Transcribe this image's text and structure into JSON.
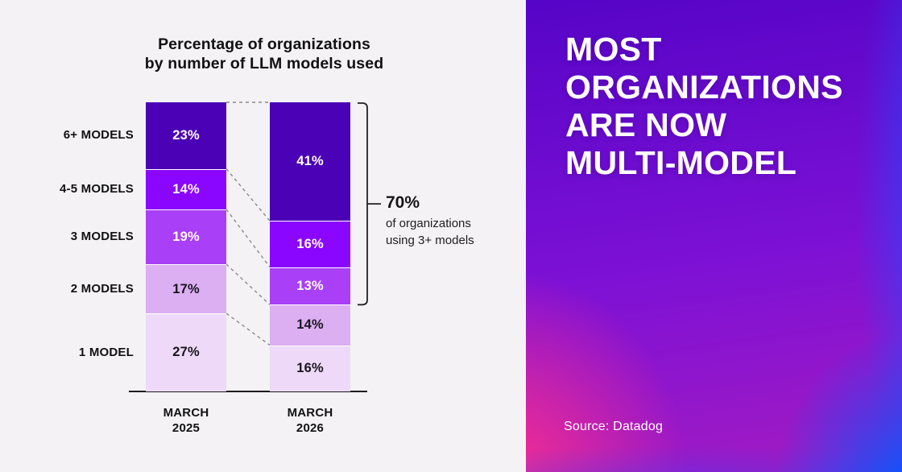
{
  "chart": {
    "title_lines": [
      "Percentage of organizations",
      "by number of LLM models used"
    ]
  },
  "chart_data": {
    "type": "bar",
    "stacked": true,
    "title": "Percentage of organizations by number of LLM models used",
    "categories": [
      "MARCH 2025",
      "MARCH 2026"
    ],
    "row_labels": [
      "6+ MODELS",
      "4-5 MODELS",
      "3 MODELS",
      "2 MODELS",
      "1 MODEL"
    ],
    "series": [
      {
        "name": "MARCH 2025",
        "values": [
          23,
          14,
          19,
          17,
          27
        ]
      },
      {
        "name": "MARCH 2026",
        "values": [
          41,
          16,
          13,
          14,
          16
        ]
      }
    ],
    "value_suffix": "%",
    "segment_colors": [
      "#4B02B6",
      "#8B06FE",
      "#A93FF6",
      "#DCAEF2",
      "#EED9F8"
    ],
    "value_label_colors": [
      "#FFFFFF",
      "#FFFFFF",
      "#FFFFFF",
      "#17171C",
      "#17171C"
    ],
    "ylim": [
      0,
      100
    ],
    "grid": false,
    "legend": "none",
    "annotation": {
      "value": "70%",
      "desc_lines": [
        "of organizations",
        "using 3+ models"
      ],
      "span_percent": 70,
      "target_series": "MARCH 2026"
    }
  },
  "right_panel": {
    "headline_lines": [
      "MOST",
      "ORGANIZATIONS",
      "ARE NOW",
      "MULTI-MODEL"
    ],
    "source": "Source: Datadog"
  },
  "colors": {
    "left_bg": "#F4F2F4",
    "axis": "#1C1C1C",
    "connector": "#8A8A8A",
    "bracket": "#222222",
    "gradient_purple": "#5604C7",
    "gradient_pink": "#FB2E8E",
    "gradient_blue": "#0657FE",
    "gradient_violet": "#8A0AFF"
  }
}
